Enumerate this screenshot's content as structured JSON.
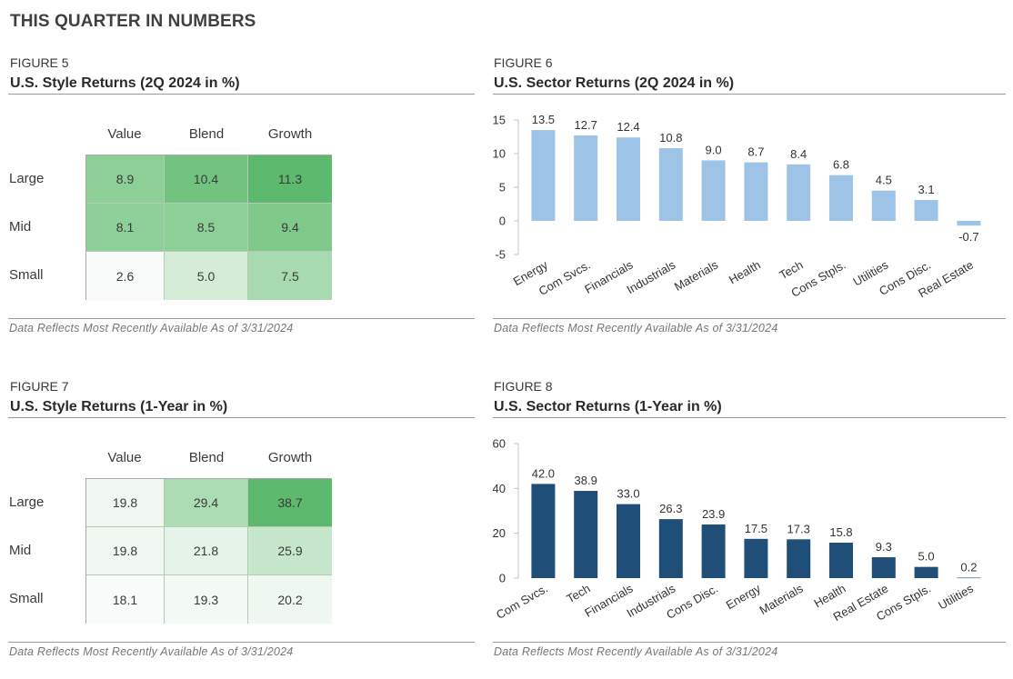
{
  "page_title": "THIS QUARTER IN NUMBERS",
  "colors": {
    "quarter_bar": "#9dc3e6",
    "year_bar": "#1f4e79",
    "heat_high": "#5cb96d",
    "heat_low": "#f7fbf8"
  },
  "figures": {
    "f5": {
      "label": "FIGURE 5",
      "title": "U.S. Style Returns (2Q 2024 in %)",
      "columns": [
        "Value",
        "Blend",
        "Growth"
      ],
      "rows": [
        {
          "name": "Large",
          "values": [
            "8.9",
            "10.4",
            "11.3"
          ]
        },
        {
          "name": "Mid",
          "values": [
            "8.1",
            "8.5",
            "9.4"
          ]
        },
        {
          "name": "Small",
          "values": [
            "2.6",
            "5.0",
            "7.5"
          ]
        }
      ],
      "note": "Data Reflects Most Recently Available As of 3/31/2024"
    },
    "f6": {
      "label": "FIGURE 6",
      "title": "U.S. Sector Returns (2Q 2024 in %)",
      "note": "Data Reflects Most Recently Available As of 3/31/2024"
    },
    "f7": {
      "label": "FIGURE 7",
      "title": "U.S. Style Returns (1-Year in %)",
      "columns": [
        "Value",
        "Blend",
        "Growth"
      ],
      "rows": [
        {
          "name": "Large",
          "values": [
            "19.8",
            "29.4",
            "38.7"
          ]
        },
        {
          "name": "Mid",
          "values": [
            "19.8",
            "21.8",
            "25.9"
          ]
        },
        {
          "name": "Small",
          "values": [
            "18.1",
            "19.3",
            "20.2"
          ]
        }
      ],
      "note": "Data Reflects Most Recently Available As of 3/31/2024"
    },
    "f8": {
      "label": "FIGURE 8",
      "title": "U.S. Sector Returns (1-Year in %)",
      "note": "Data Reflects Most Recently Available As of 3/31/2024"
    }
  },
  "chart_data": [
    {
      "id": "figure-5",
      "type": "heatmap",
      "title": "U.S. Style Returns (2Q 2024 in %)",
      "x": [
        "Value",
        "Blend",
        "Growth"
      ],
      "y": [
        "Large",
        "Mid",
        "Small"
      ],
      "values": [
        [
          8.9,
          10.4,
          11.3
        ],
        [
          8.1,
          8.5,
          9.4
        ],
        [
          2.6,
          5.0,
          7.5
        ]
      ]
    },
    {
      "id": "figure-6",
      "type": "bar",
      "title": "U.S. Sector Returns (2Q 2024 in %)",
      "categories": [
        "Energy",
        "Com Svcs.",
        "Financials",
        "Industrials",
        "Materials",
        "Health",
        "Tech",
        "Cons Stpls.",
        "Utilities",
        "Cons Disc.",
        "Real Estate"
      ],
      "values": [
        13.5,
        12.7,
        12.4,
        10.8,
        9.0,
        8.7,
        8.4,
        6.8,
        4.5,
        3.1,
        -0.7
      ],
      "labels": [
        "13.5",
        "12.7",
        "12.4",
        "10.8",
        "9.0",
        "8.7",
        "8.4",
        "6.8",
        "4.5",
        "3.1",
        "-0.7"
      ],
      "yticks": [
        "15",
        "10",
        "5",
        "0",
        "-5"
      ],
      "ylim": [
        -5,
        15
      ],
      "xlabel": "",
      "ylabel": ""
    },
    {
      "id": "figure-7",
      "type": "heatmap",
      "title": "U.S. Style Returns (1-Year in %)",
      "x": [
        "Value",
        "Blend",
        "Growth"
      ],
      "y": [
        "Large",
        "Mid",
        "Small"
      ],
      "values": [
        [
          19.8,
          29.4,
          38.7
        ],
        [
          19.8,
          21.8,
          25.9
        ],
        [
          18.1,
          19.3,
          20.2
        ]
      ]
    },
    {
      "id": "figure-8",
      "type": "bar",
      "title": "U.S. Sector Returns (1-Year in %)",
      "categories": [
        "Com Svcs.",
        "Tech",
        "Financials",
        "Industrials",
        "Cons Disc.",
        "Energy",
        "Materials",
        "Health",
        "Real Estate",
        "Cons Stpls.",
        "Utilities"
      ],
      "values": [
        42.0,
        38.9,
        33.0,
        26.3,
        23.9,
        17.5,
        17.3,
        15.8,
        9.3,
        5.0,
        0.2
      ],
      "labels": [
        "42.0",
        "38.9",
        "33.0",
        "26.3",
        "23.9",
        "17.5",
        "17.3",
        "15.8",
        "9.3",
        "5.0",
        "0.2"
      ],
      "yticks": [
        "60",
        "40",
        "20",
        "0"
      ],
      "ylim": [
        0,
        60
      ],
      "xlabel": "",
      "ylabel": ""
    }
  ]
}
